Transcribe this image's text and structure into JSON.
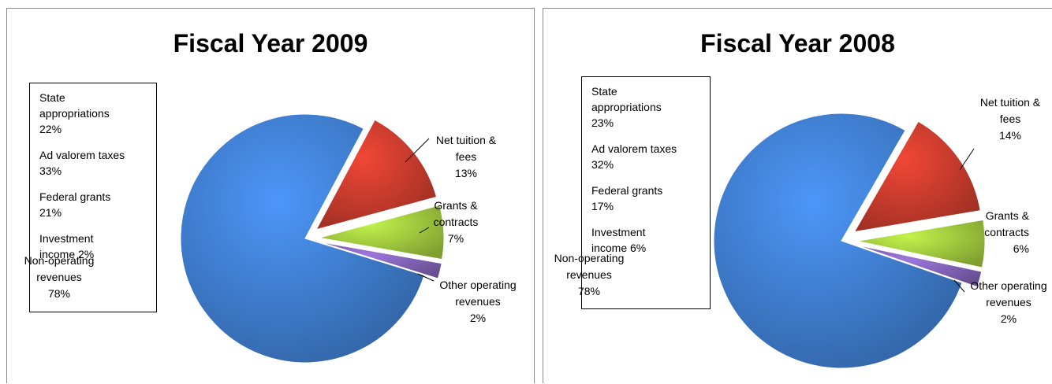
{
  "charts": [
    {
      "id": "fy2009",
      "title": "Fiscal Year 2009",
      "legend_box": [
        [
          "State",
          "appropriations",
          "22%"
        ],
        [
          "Ad valorem taxes",
          "33%"
        ],
        [
          "Federal grants",
          "21%"
        ],
        [
          "Investment",
          "income 2%"
        ]
      ]
    },
    {
      "id": "fy2008",
      "title": "Fiscal Year 2008",
      "legend_box": [
        [
          "State",
          "appropriations",
          "23%"
        ],
        [
          "Ad valorem taxes",
          "32%"
        ],
        [
          "Federal grants",
          "17%"
        ],
        [
          "Investment",
          "income 6%"
        ]
      ]
    }
  ],
  "chart_data": [
    {
      "type": "pie",
      "title": "Fiscal Year 2009",
      "slices": [
        {
          "label": [
            "Net tuition &",
            "fees",
            "13%"
          ],
          "value": 13,
          "color": "#c0392b"
        },
        {
          "label": [
            "Grants &",
            "contracts",
            "7%"
          ],
          "value": 7,
          "color": "#9bc23c"
        },
        {
          "label": [
            "Other operating",
            "revenues",
            "2%"
          ],
          "value": 2,
          "color": "#7d5fb0"
        },
        {
          "label": [
            "Non-operating",
            "revenues",
            "78%"
          ],
          "value": 78,
          "color": "#3d79c7"
        }
      ],
      "exploded": true
    },
    {
      "type": "pie",
      "title": "Fiscal Year 2008",
      "slices": [
        {
          "label": [
            "Net tuition &",
            "fees",
            "14%"
          ],
          "value": 14,
          "color": "#c0392b"
        },
        {
          "label": [
            "Grants &",
            "contracts",
            "6%"
          ],
          "value": 6,
          "color": "#9bc23c"
        },
        {
          "label": [
            "Other operating",
            "revenues",
            "2%"
          ],
          "value": 2,
          "color": "#7d5fb0"
        },
        {
          "label": [
            "Non-operating",
            "revenues",
            "78%"
          ],
          "value": 78,
          "color": "#3d79c7"
        }
      ],
      "exploded": true
    }
  ]
}
